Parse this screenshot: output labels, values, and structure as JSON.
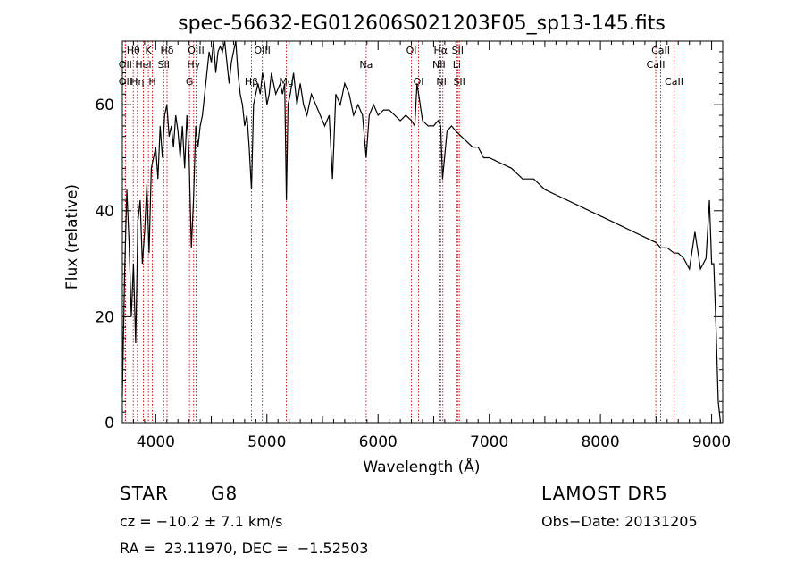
{
  "chart_data": {
    "type": "line",
    "title": "spec-56632-EG012606S021203F05_sp13-145.fits",
    "xlabel": "Wavelength (Å)",
    "ylabel": "Flux (relative)",
    "xlim": [
      3700,
      9100
    ],
    "ylim": [
      0,
      72
    ],
    "xticks": [
      4000,
      5000,
      6000,
      7000,
      8000,
      9000
    ],
    "yticks": [
      0,
      20,
      40,
      60
    ],
    "line_color": "#000000",
    "marker_color": "#cc0000",
    "series": [
      {
        "x": [
          3700,
          3720,
          3740,
          3760,
          3780,
          3800,
          3820,
          3840,
          3860,
          3880,
          3900,
          3920,
          3940,
          3960,
          3980,
          4000,
          4020,
          4040,
          4060,
          4080,
          4100,
          4120,
          4140,
          4160,
          4180,
          4200,
          4220,
          4240,
          4260,
          4280,
          4300,
          4320,
          4340,
          4360,
          4380,
          4400,
          4420,
          4440,
          4460,
          4480,
          4500,
          4520,
          4540,
          4560,
          4580,
          4600,
          4620,
          4640,
          4660,
          4680,
          4700,
          4720,
          4740,
          4760,
          4780,
          4800,
          4820,
          4840,
          4861,
          4880,
          4900,
          4920,
          4940,
          4960,
          4980,
          5000,
          5020,
          5040,
          5060,
          5080,
          5100,
          5120,
          5140,
          5160,
          5175,
          5190,
          5210,
          5240,
          5270,
          5300,
          5330,
          5360,
          5400,
          5440,
          5480,
          5520,
          5560,
          5590,
          5620,
          5660,
          5700,
          5740,
          5780,
          5820,
          5860,
          5893,
          5920,
          5960,
          6000,
          6050,
          6100,
          6150,
          6200,
          6250,
          6300,
          6330,
          6350,
          6400,
          6450,
          6500,
          6540,
          6563,
          6580,
          6620,
          6660,
          6700,
          6750,
          6800,
          6850,
          6900,
          6950,
          7000,
          7100,
          7200,
          7300,
          7400,
          7500,
          7600,
          7700,
          7800,
          7900,
          8000,
          8100,
          8200,
          8300,
          8400,
          8500,
          8542,
          8600,
          8662,
          8700,
          8750,
          8800,
          8850,
          8900,
          8950,
          8980,
          9000,
          9020,
          9040,
          9060,
          9080
        ],
        "values": [
          5,
          28,
          44,
          34,
          20,
          30,
          15,
          38,
          42,
          30,
          36,
          45,
          32,
          48,
          50,
          52,
          46,
          56,
          50,
          58,
          60,
          54,
          56,
          52,
          58,
          55,
          50,
          56,
          48,
          58,
          50,
          33,
          42,
          56,
          52,
          56,
          58,
          62,
          66,
          70,
          68,
          72,
          66,
          70,
          71,
          70,
          72,
          68,
          64,
          68,
          70,
          72,
          66,
          62,
          60,
          56,
          58,
          52,
          44,
          60,
          62,
          64,
          62,
          66,
          64,
          60,
          62,
          66,
          64,
          62,
          63,
          64,
          62,
          64,
          42,
          60,
          62,
          66,
          60,
          64,
          60,
          58,
          62,
          60,
          58,
          56,
          58,
          46,
          62,
          60,
          64,
          62,
          58,
          60,
          58,
          50,
          58,
          60,
          58,
          59,
          59,
          58,
          57,
          58,
          57,
          56,
          64,
          57,
          56,
          56,
          57,
          56,
          46,
          55,
          56,
          55,
          54,
          53,
          52,
          52,
          50,
          50,
          49,
          48,
          46,
          46,
          44,
          43,
          42,
          41,
          40,
          39,
          38,
          37,
          36,
          35,
          34,
          33,
          33,
          32,
          32,
          31,
          29,
          36,
          29,
          31,
          42,
          30,
          30,
          18,
          4,
          0
        ]
      }
    ],
    "line_markers": [
      {
        "label": "Hθ",
        "x": 3798,
        "row": 1
      },
      {
        "label": "K",
        "x": 3934,
        "row": 1
      },
      {
        "label": "Hδ",
        "x": 4102,
        "row": 1
      },
      {
        "label": "OII",
        "x": 3727,
        "row": 2
      },
      {
        "label": "HeI",
        "x": 3889,
        "row": 2
      },
      {
        "label": "SII",
        "x": 4072,
        "row": 2
      },
      {
        "label": "OII",
        "x": 3727,
        "row": 3
      },
      {
        "label": "Hη",
        "x": 3835,
        "row": 3
      },
      {
        "label": "H",
        "x": 3969,
        "row": 3
      },
      {
        "label": "OIII",
        "x": 4363,
        "row": 1
      },
      {
        "label": "Hγ",
        "x": 4341,
        "row": 2
      },
      {
        "label": "G",
        "x": 4304,
        "row": 3
      },
      {
        "label": "OIII",
        "x": 4959,
        "row": 1
      },
      {
        "label": "Hβ",
        "x": 4861,
        "row": 3
      },
      {
        "label": "Mg",
        "x": 5175,
        "row": 3
      },
      {
        "label": "Na",
        "x": 5893,
        "row": 2
      },
      {
        "label": "OI",
        "x": 6300,
        "row": 1
      },
      {
        "label": "OI",
        "x": 6364,
        "row": 3
      },
      {
        "label": "Hα",
        "x": 6563,
        "row": 1
      },
      {
        "label": "SII",
        "x": 6716,
        "row": 1
      },
      {
        "label": "NII",
        "x": 6548,
        "row": 2
      },
      {
        "label": "Li",
        "x": 6708,
        "row": 2
      },
      {
        "label": "NII",
        "x": 6583,
        "row": 3
      },
      {
        "label": "SII",
        "x": 6731,
        "row": 3
      },
      {
        "label": "CaII",
        "x": 8542,
        "row": 1
      },
      {
        "label": "CaII",
        "x": 8498,
        "row": 2
      },
      {
        "label": "CaII",
        "x": 8662,
        "row": 3
      }
    ]
  },
  "info": {
    "object_class": "STAR",
    "subclass": "G8",
    "survey": "LAMOST DR5",
    "redshift_text": "cz = −10.2 ± 7.1 km/s",
    "obs_date": "Obs−Date: 20131205",
    "coords": "RA =  23.11970, DEC =  −1.52503"
  }
}
